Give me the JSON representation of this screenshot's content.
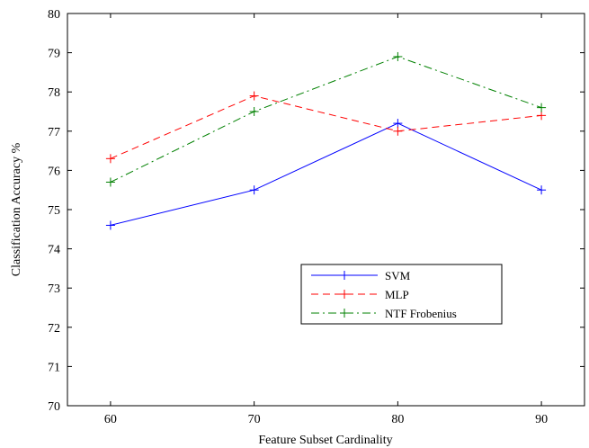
{
  "chart_data": {
    "type": "line",
    "title": "",
    "xlabel": "Feature Subset Cardinality",
    "ylabel": "Classification Accuracy %",
    "x": [
      60,
      70,
      80,
      90
    ],
    "xlim": [
      57,
      93
    ],
    "ylim": [
      70,
      80
    ],
    "xticks": [
      60,
      70,
      80,
      90
    ],
    "yticks": [
      70,
      71,
      72,
      73,
      74,
      75,
      76,
      77,
      78,
      79,
      80
    ],
    "grid": false,
    "legend_position": "lower-right",
    "series": [
      {
        "name": "SVM",
        "values": [
          74.6,
          75.5,
          77.2,
          75.5
        ],
        "color": "#0000ff",
        "linestyle": "solid",
        "marker": "plus"
      },
      {
        "name": "MLP",
        "values": [
          76.3,
          77.9,
          77.0,
          77.4
        ],
        "color": "#ff0000",
        "linestyle": "dashed",
        "marker": "plus"
      },
      {
        "name": "NTF Frobenius",
        "values": [
          75.7,
          77.5,
          78.9,
          77.6
        ],
        "color": "#008000",
        "linestyle": "dashdot",
        "marker": "plus"
      }
    ]
  }
}
